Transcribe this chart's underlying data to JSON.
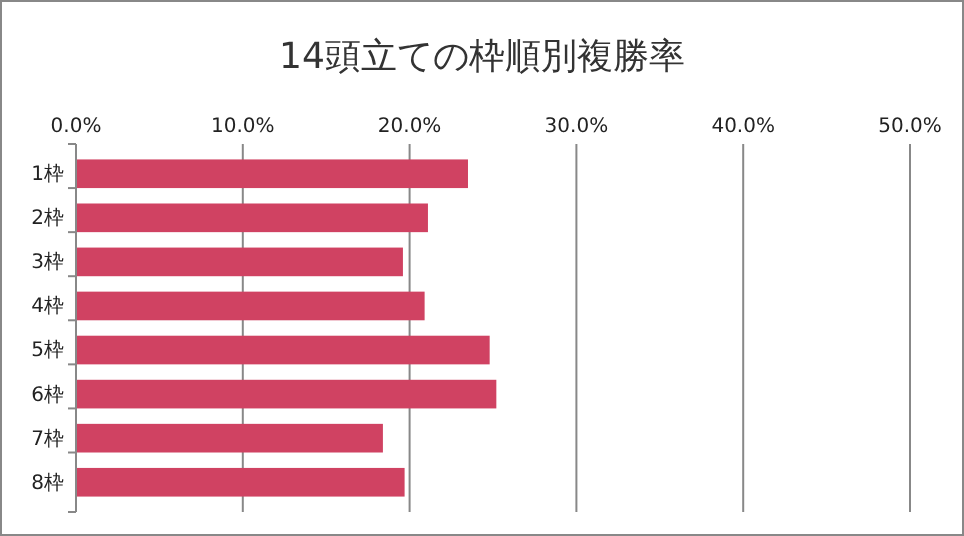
{
  "chart_data": {
    "type": "bar",
    "orientation": "horizontal",
    "title": "14頭立ての枠順別複勝率",
    "categories": [
      "1枠",
      "2枠",
      "3枠",
      "4枠",
      "5枠",
      "6枠",
      "7枠",
      "8枠"
    ],
    "values": [
      23.5,
      21.1,
      19.6,
      20.9,
      24.8,
      25.2,
      18.4,
      19.7
    ],
    "color": "#d04262",
    "xlim": [
      0,
      50
    ],
    "xticks": [
      {
        "value": 0,
        "label": "0.0%"
      },
      {
        "value": 10,
        "label": "10.0%"
      },
      {
        "value": 20,
        "label": "20.0%"
      },
      {
        "value": 30,
        "label": "30.0%"
      },
      {
        "value": 40,
        "label": "40.0%"
      },
      {
        "value": 50,
        "label": "50.0%"
      }
    ],
    "grid": "x"
  }
}
